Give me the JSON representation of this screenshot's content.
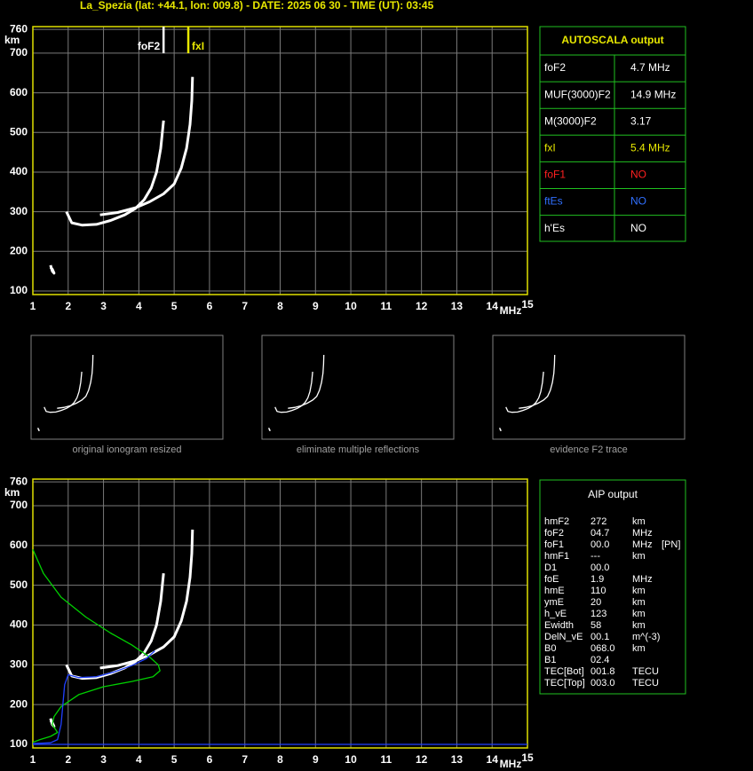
{
  "header": {
    "title": "La_Spezia (lat: +44.1, lon: 009.8) - DATE: 2025 06 30 - TIME (UT): 03:45"
  },
  "ionogram": {
    "xlim": [
      1,
      15
    ],
    "ylim": [
      91,
      767
    ],
    "xticks": [
      1,
      2,
      3,
      4,
      5,
      6,
      7,
      8,
      9,
      10,
      11,
      12,
      13,
      14,
      15
    ],
    "yticks": [
      100,
      200,
      300,
      400,
      500,
      600,
      700,
      760
    ],
    "grid": true,
    "y_unit": "km",
    "x_unit": "MHz",
    "markers": [
      {
        "name": "foF2",
        "x": 4.7,
        "color": "#ffffff"
      },
      {
        "name": "fxI",
        "x": 5.4,
        "color": "#e8e800"
      }
    ],
    "traces": [
      {
        "color": "#ffffff",
        "x": [
          1.95,
          2.1,
          2.4,
          2.8,
          3.2,
          3.6,
          3.9,
          4.15,
          4.35,
          4.5,
          4.62,
          4.7
        ],
        "y": [
          300,
          272,
          266,
          268,
          278,
          292,
          308,
          330,
          360,
          400,
          460,
          530
        ]
      },
      {
        "color": "#ffffff",
        "x": [
          2.9,
          3.4,
          3.9,
          4.3,
          4.7,
          5.0,
          5.2,
          5.35,
          5.45,
          5.5,
          5.52
        ],
        "y": [
          292,
          298,
          310,
          325,
          345,
          370,
          410,
          460,
          520,
          580,
          640
        ]
      },
      {
        "color": "#ffffff",
        "x": [
          1.5,
          1.55,
          1.6,
          1.55,
          1.5
        ],
        "y": [
          165,
          150,
          145,
          155,
          160
        ]
      }
    ]
  },
  "thumbnails": [
    {
      "caption": "original ionogram resized"
    },
    {
      "caption": "eliminate multiple reflections"
    },
    {
      "caption": "evidence F2 trace"
    }
  ],
  "autoscala": {
    "title": "AUTOSCALA output",
    "rows": [
      {
        "label": "foF2",
        "value": "4.7 MHz",
        "color": "#ffffff"
      },
      {
        "label": "MUF(3000)F2",
        "value": "14.9 MHz",
        "color": "#ffffff"
      },
      {
        "label": "M(3000)F2",
        "value": "3.17",
        "color": "#ffffff"
      },
      {
        "label": "fxI",
        "value": "5.4 MHz",
        "color": "#e8e800"
      },
      {
        "label": "foF1",
        "value": "NO",
        "color": "#ff2020"
      },
      {
        "label": "ftEs",
        "value": "NO",
        "color": "#3070ff"
      },
      {
        "label": "h'Es",
        "value": "NO",
        "color": "#ffffff"
      }
    ]
  },
  "aip": {
    "title": "AIP output",
    "rows": [
      [
        "hmF2",
        "272",
        "km"
      ],
      [
        "foF2",
        "04.7",
        "MHz"
      ],
      [
        "foF1",
        "00.0",
        "MHz",
        "[PN]"
      ],
      [
        "hmF1",
        "---",
        "km"
      ],
      [
        "D1",
        "00.0"
      ],
      [
        "foE",
        "1.9",
        "MHz"
      ],
      [
        "hmE",
        "110",
        "km"
      ],
      [
        "ymE",
        "20",
        "km"
      ],
      [
        "h_vE",
        "123",
        "km"
      ],
      [
        "Ewidth",
        "58",
        "km"
      ],
      [
        "DelN_vE",
        "00.1",
        "m^(-3)"
      ],
      [
        "B0",
        "068.0",
        "km"
      ],
      [
        "B1",
        "02.4"
      ],
      [
        "TEC[Bot]",
        "001.8",
        "TECU"
      ],
      [
        "TEC[Top]",
        "003.0",
        "TECU"
      ]
    ]
  },
  "ionogram_aip": {
    "xlim": [
      1,
      15
    ],
    "ylim": [
      91,
      767
    ],
    "xticks": [
      1,
      2,
      3,
      4,
      5,
      6,
      7,
      8,
      9,
      10,
      11,
      12,
      13,
      14,
      15
    ],
    "yticks": [
      100,
      200,
      300,
      400,
      500,
      600,
      700,
      760
    ],
    "grid": true,
    "y_unit": "km",
    "x_unit": "MHz",
    "traces": [
      {
        "color": "#ffffff",
        "x": [
          1.95,
          2.1,
          2.4,
          2.8,
          3.2,
          3.6,
          3.9,
          4.15,
          4.35,
          4.5,
          4.62,
          4.7
        ],
        "y": [
          300,
          272,
          266,
          268,
          278,
          292,
          308,
          330,
          360,
          400,
          460,
          530
        ]
      },
      {
        "color": "#ffffff",
        "x": [
          2.9,
          3.4,
          3.9,
          4.3,
          4.7,
          5.0,
          5.2,
          5.35,
          5.45,
          5.5,
          5.52
        ],
        "y": [
          292,
          298,
          310,
          325,
          345,
          370,
          410,
          460,
          520,
          580,
          640
        ]
      },
      {
        "color": "#ffffff",
        "x": [
          1.5,
          1.55,
          1.6,
          1.55,
          1.5
        ],
        "y": [
          165,
          150,
          145,
          155,
          160
        ]
      },
      {
        "color": "#00d000",
        "x": [
          1.0,
          1.3,
          1.8,
          2.5,
          3.2,
          3.8,
          4.3,
          4.55,
          4.6,
          4.4,
          3.8,
          3.0,
          2.3,
          1.8,
          1.6,
          1.55,
          1.7,
          1.5,
          1.2,
          1.0
        ],
        "y": [
          590,
          530,
          470,
          420,
          380,
          350,
          320,
          300,
          285,
          270,
          258,
          245,
          225,
          195,
          170,
          150,
          130,
          120,
          112,
          105
        ]
      },
      {
        "color": "#2040ff",
        "x": [
          1.0,
          1.5,
          1.7,
          1.8,
          1.9,
          2.0,
          2.3,
          2.8,
          3.3,
          3.8,
          4.2,
          4.45
        ],
        "y": [
          102,
          104,
          112,
          150,
          250,
          275,
          268,
          270,
          282,
          298,
          315,
          335
        ]
      },
      {
        "color": "#2040ff",
        "x": [
          1.0,
          15.0
        ],
        "y": [
          100,
          100
        ]
      }
    ]
  }
}
